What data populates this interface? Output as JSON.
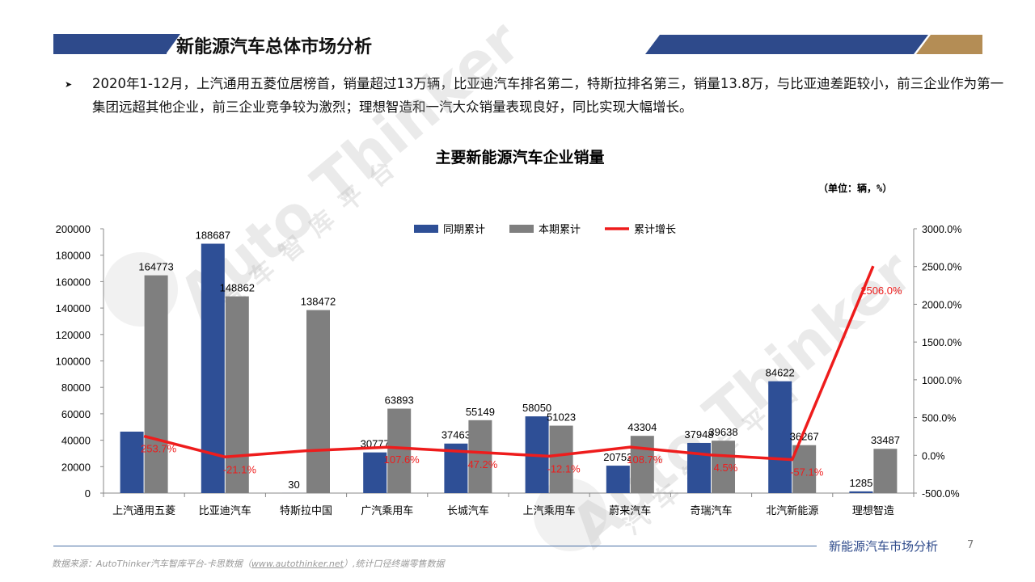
{
  "header": {
    "title": "新能源汽车总体市场分析",
    "bullet_icon": "chevron-right-icon",
    "description": "2020年1-12月，上汽通用五菱位居榜首，销量超过13万辆，比亚迪汽车排名第二，特斯拉排名第三，销量13.8万，与比亚迪差距较小，前三企业作为第一集团远超其他企业，前三企业竞争较为激烈；理想智造和一汽大众销量表现良好，同比实现大幅增长。"
  },
  "chart_data": {
    "type": "bar",
    "title": "主要新能源汽车企业销量",
    "unit_note": "（单位：辆，%）",
    "categories": [
      "上汽通用五菱",
      "比亚迪汽车",
      "特斯拉中国",
      "广汽乘用车",
      "长城汽车",
      "上汽乘用车",
      "蔚来汽车",
      "奇瑞汽车",
      "北汽新能源",
      "理想智造"
    ],
    "series": [
      {
        "name": "同期累计",
        "kind": "bar",
        "axis": "left",
        "color": "#2e4f96",
        "values": [
          46500,
          188687,
          30,
          30777,
          37463,
          58050,
          20752,
          37948,
          84622,
          1285
        ],
        "labels": [
          "",
          "188687",
          "30",
          "30777",
          "37463",
          "58050",
          "20752",
          "37948",
          "84622",
          "1285"
        ]
      },
      {
        "name": "本期累计",
        "kind": "bar",
        "axis": "left",
        "color": "#7f7f7f",
        "values": [
          164773,
          148862,
          138472,
          63893,
          55149,
          51023,
          43304,
          39638,
          36267,
          33487
        ],
        "labels": [
          "164773",
          "148862",
          "138472",
          "63893",
          "55149",
          "51023",
          "43304",
          "39638",
          "36267",
          "33487"
        ]
      },
      {
        "name": "累计增长",
        "kind": "line",
        "axis": "right",
        "color": "#ee1c1c",
        "values": [
          253.7,
          -21.1,
          60,
          107.6,
          47.2,
          -12.1,
          108.7,
          4.5,
          -57.1,
          2506.0
        ],
        "labels": [
          "253.7%",
          "-21.1%",
          "",
          "107.6%",
          "47.2%",
          "-12.1%",
          "108.7%",
          "4.5%",
          "-57.1%",
          "2506.0%"
        ]
      }
    ],
    "y_left": {
      "min": 0,
      "max": 200000,
      "ticks": [
        "0",
        "20000",
        "40000",
        "60000",
        "80000",
        "100000",
        "120000",
        "140000",
        "160000",
        "180000",
        "200000"
      ]
    },
    "y_right": {
      "min": -500,
      "max": 3000,
      "ticks": [
        "-500.0%",
        "0.0%",
        "500.0%",
        "1000.0%",
        "1500.0%",
        "2000.0%",
        "2500.0%",
        "3000.0%"
      ]
    },
    "legend_position": "top-center"
  },
  "watermark": {
    "brand": "Auto Thinker",
    "sub": "汽车智库平台"
  },
  "footer": {
    "title": "新能源汽车市场分析",
    "page": "7",
    "source_prefix": "数据来源：AutoThinker汽车智库平台-卡思数据（",
    "source_link": "www.autothinker.net",
    "source_suffix": "）,统计口径终端零售数据"
  }
}
